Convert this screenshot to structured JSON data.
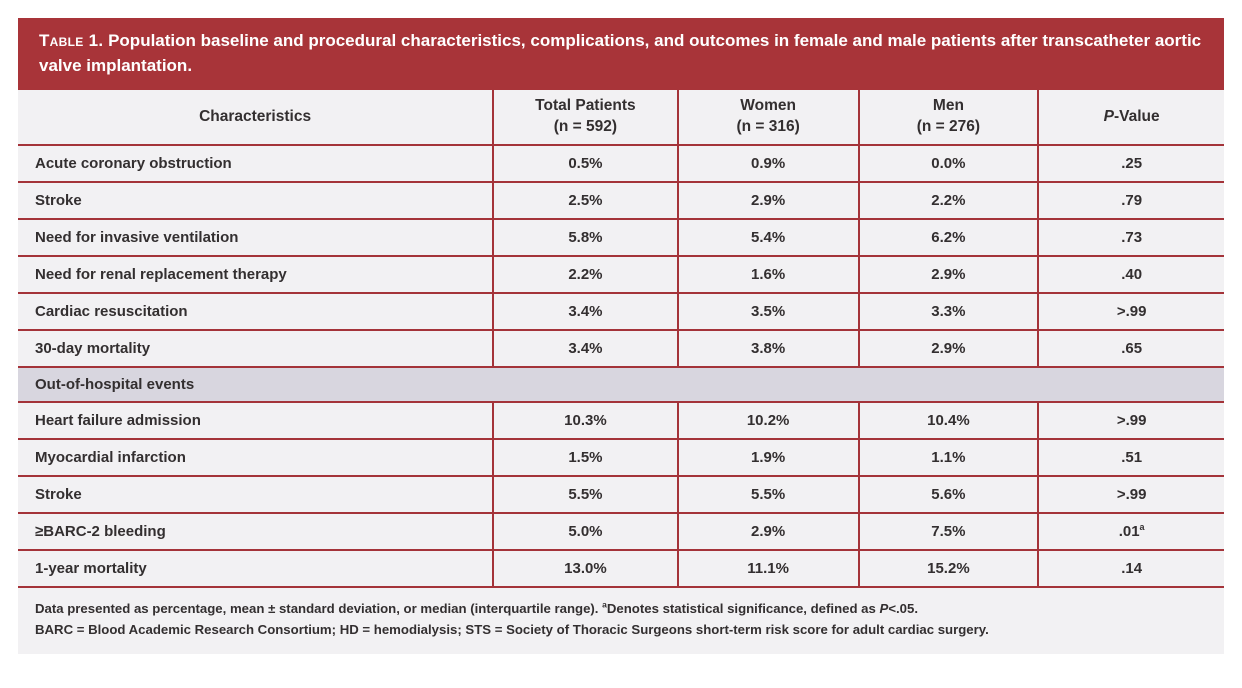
{
  "colors": {
    "banner_bg": "#A83439",
    "border": "#A43339",
    "row_bg": "#F2F1F3",
    "section_bg": "#D8D6DF",
    "text": "#332F30",
    "banner_text": "#FFFFFF"
  },
  "banner": {
    "label": "Table 1.",
    "text": " Population baseline and procedural characteristics, complications, and outcomes in female and male patients after transcatheter aortic valve implantation."
  },
  "table": {
    "columns": [
      {
        "key": "characteristics",
        "label": "Characteristics",
        "sub": ""
      },
      {
        "key": "total",
        "label": "Total Patients",
        "sub": "(n = 592)"
      },
      {
        "key": "women",
        "label": "Women",
        "sub": "(n = 316)"
      },
      {
        "key": "men",
        "label": "Men",
        "sub": "(n = 276)"
      },
      {
        "key": "p-value",
        "italic_prefix": "P",
        "label": "-Value",
        "sub": ""
      }
    ],
    "sections": [
      {
        "header": null,
        "rows": [
          {
            "label": "Acute coronary obstruction",
            "total": "0.5%",
            "women": "0.9%",
            "men": "0.0%",
            "p": ".25"
          },
          {
            "label": "Stroke",
            "total": "2.5%",
            "women": "2.9%",
            "men": "2.2%",
            "p": ".79"
          },
          {
            "label": "Need for invasive ventilation",
            "total": "5.8%",
            "women": "5.4%",
            "men": "6.2%",
            "p": ".73"
          },
          {
            "label": "Need for renal replacement therapy",
            "total": "2.2%",
            "women": "1.6%",
            "men": "2.9%",
            "p": ".40"
          },
          {
            "label": "Cardiac resuscitation",
            "total": "3.4%",
            "women": "3.5%",
            "men": "3.3%",
            "p": ">.99"
          },
          {
            "label": "30-day mortality",
            "total": "3.4%",
            "women": "3.8%",
            "men": "2.9%",
            "p": ".65"
          }
        ]
      },
      {
        "header": "Out-of-hospital events",
        "rows": [
          {
            "label": "Heart failure admission",
            "total": "10.3%",
            "women": "10.2%",
            "men": "10.4%",
            "p": ">.99"
          },
          {
            "label": "Myocardial infarction",
            "total": "1.5%",
            "women": "1.9%",
            "men": "1.1%",
            "p": ".51"
          },
          {
            "label": "Stroke",
            "total": "5.5%",
            "women": "5.5%",
            "men": "5.6%",
            "p": ">.99"
          },
          {
            "label": "≥BARC-2 bleeding",
            "total": "5.0%",
            "women": "2.9%",
            "men": "7.5%",
            "p": ".01",
            "p_sup": "a"
          },
          {
            "label": "1-year mortality",
            "total": "13.0%",
            "women": "11.1%",
            "men": "15.2%",
            "p": ".14"
          }
        ]
      }
    ]
  },
  "footnotes": {
    "line1_parts": [
      {
        "t": "Data presented as percentage, mean ± standard deviation, or median (interquartile range). "
      },
      {
        "t": "a",
        "sup": true
      },
      {
        "t": "Denotes statistical significance, defined as "
      },
      {
        "t": "P",
        "italic": true
      },
      {
        "t": "<.05."
      }
    ],
    "line2": "BARC = Blood Academic Research Consortium; HD = hemodialysis; STS = Society of Thoracic Surgeons short-term risk score for adult cardiac surgery."
  }
}
